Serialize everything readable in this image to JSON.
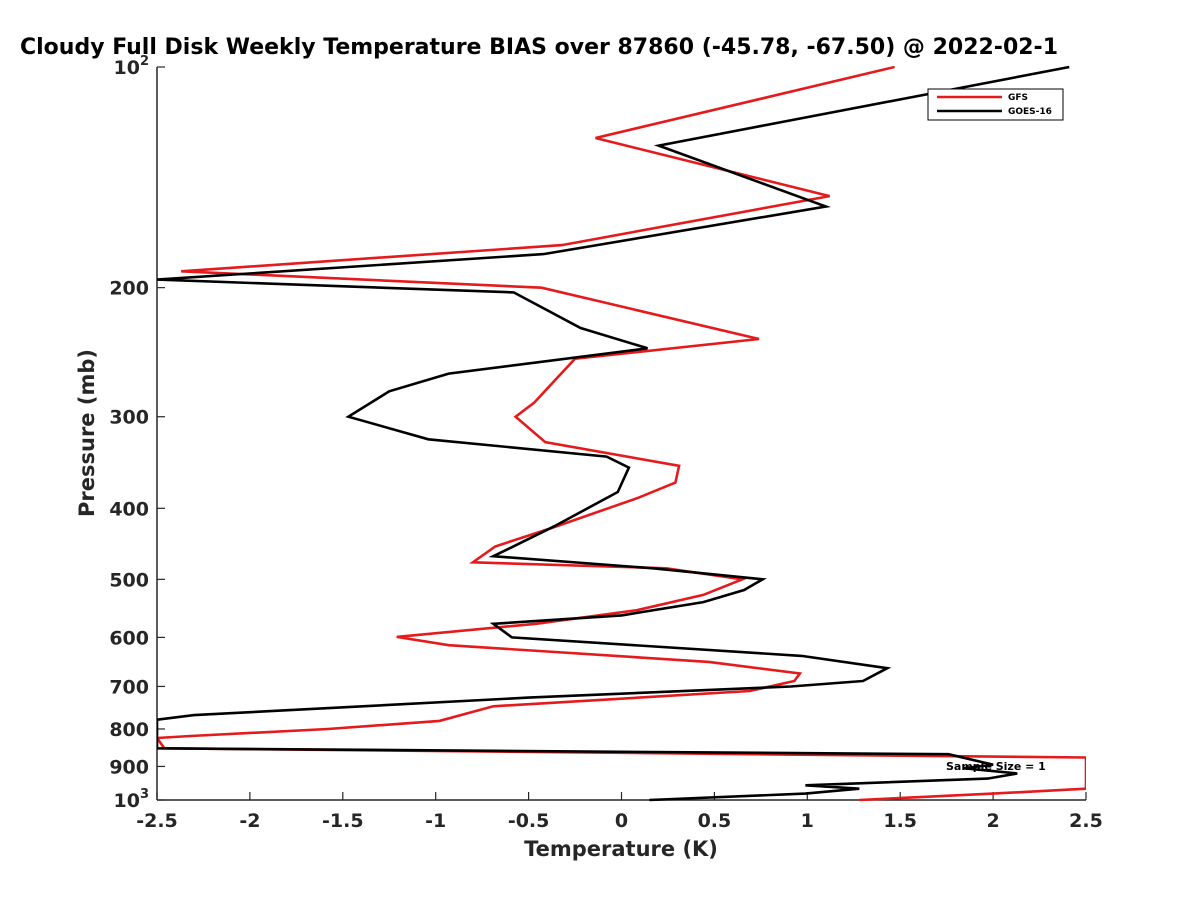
{
  "chart_data": {
    "type": "line",
    "title": "Cloudy Full Disk Weekly Temperature BIAS over 87860 (-45.78, -67.50) @ 2022-02-1",
    "xlabel": "Temperature (K)",
    "ylabel": "Pressure (mb)",
    "xlim": [
      -2.5,
      2.5
    ],
    "ylim": [
      100,
      1000
    ],
    "yscale": "log",
    "yreversed": true,
    "xticks": [
      -2.5,
      -2,
      -1.5,
      -1,
      -0.5,
      0,
      0.5,
      1,
      1.5,
      2,
      2.5
    ],
    "xtick_labels": [
      "-2.5",
      "-2",
      "-1.5",
      "-1",
      "-0.5",
      "0",
      "0.5",
      "1",
      "1.5",
      "2",
      "2.5"
    ],
    "yticks": [
      {
        "value": 100,
        "base": "10",
        "exp": "2"
      },
      {
        "value": 200,
        "label": "200"
      },
      {
        "value": 300,
        "label": "300"
      },
      {
        "value": 400,
        "label": "400"
      },
      {
        "value": 500,
        "label": "500"
      },
      {
        "value": 600,
        "label": "600"
      },
      {
        "value": 700,
        "label": "700"
      },
      {
        "value": 800,
        "label": "800"
      },
      {
        "value": 900,
        "label": "900"
      },
      {
        "value": 1000,
        "base": "10",
        "exp": "3"
      }
    ],
    "grid": false,
    "legend_position": "top-right",
    "annotation": "Sample Size = 1",
    "series": [
      {
        "name": "GFS",
        "color": "#e41a1c",
        "points": [
          [
            1.47,
            100
          ],
          [
            -0.14,
            125
          ],
          [
            1.12,
            150
          ],
          [
            -0.32,
            175
          ],
          [
            -2.37,
            190
          ],
          [
            -0.43,
            200
          ],
          [
            0.74,
            235
          ],
          [
            -0.25,
            250
          ],
          [
            -0.47,
            287
          ],
          [
            -0.57,
            300
          ],
          [
            -0.41,
            325
          ],
          [
            0.31,
            350
          ],
          [
            0.29,
            369
          ],
          [
            0.09,
            387
          ],
          [
            -0.37,
            425
          ],
          [
            -0.68,
            451
          ],
          [
            -0.8,
            474
          ],
          [
            0.24,
            483
          ],
          [
            0.65,
            500
          ],
          [
            0.44,
            525
          ],
          [
            0.08,
            551
          ],
          [
            -0.46,
            575
          ],
          [
            -1.21,
            599
          ],
          [
            -0.93,
            615
          ],
          [
            0.47,
            648
          ],
          [
            0.96,
            672
          ],
          [
            0.93,
            688
          ],
          [
            0.69,
            710
          ],
          [
            -0.69,
            745
          ],
          [
            -0.98,
            780
          ],
          [
            -1.58,
            800
          ],
          [
            -2.32,
            818
          ],
          [
            -2.5,
            823
          ],
          [
            -2.46,
            850
          ],
          [
            2.5,
            875
          ],
          [
            2.5,
            965
          ],
          [
            2.0,
            980
          ],
          [
            1.28,
            1000
          ]
        ]
      },
      {
        "name": "GOES-16",
        "color": "#000000",
        "points": [
          [
            2.41,
            100
          ],
          [
            0.2,
            128
          ],
          [
            1.1,
            155
          ],
          [
            -0.42,
            180
          ],
          [
            -2.5,
            195
          ],
          [
            -0.58,
            203
          ],
          [
            -0.22,
            227
          ],
          [
            0.14,
            242
          ],
          [
            -0.93,
            262
          ],
          [
            -1.25,
            277
          ],
          [
            -1.47,
            300
          ],
          [
            -1.04,
            322
          ],
          [
            -0.08,
            340
          ],
          [
            0.04,
            352
          ],
          [
            -0.02,
            380
          ],
          [
            -0.36,
            423
          ],
          [
            -0.59,
            452
          ],
          [
            -0.69,
            465
          ],
          [
            0.17,
            483
          ],
          [
            0.76,
            500
          ],
          [
            0.66,
            517
          ],
          [
            0.44,
            537
          ],
          [
            0.0,
            560
          ],
          [
            -0.69,
            575
          ],
          [
            -0.59,
            600
          ],
          [
            0.97,
            636
          ],
          [
            1.43,
            661
          ],
          [
            1.3,
            688
          ],
          [
            0.91,
            700
          ],
          [
            -0.5,
            725
          ],
          [
            -2.3,
            766
          ],
          [
            -2.5,
            777
          ],
          [
            -2.5,
            850
          ],
          [
            1.76,
            866
          ],
          [
            2.0,
            895
          ],
          [
            1.84,
            905
          ],
          [
            2.13,
            920
          ],
          [
            1.97,
            935
          ],
          [
            0.99,
            955
          ],
          [
            1.28,
            965
          ],
          [
            0.99,
            980
          ],
          [
            0.15,
            1000
          ]
        ]
      }
    ]
  }
}
